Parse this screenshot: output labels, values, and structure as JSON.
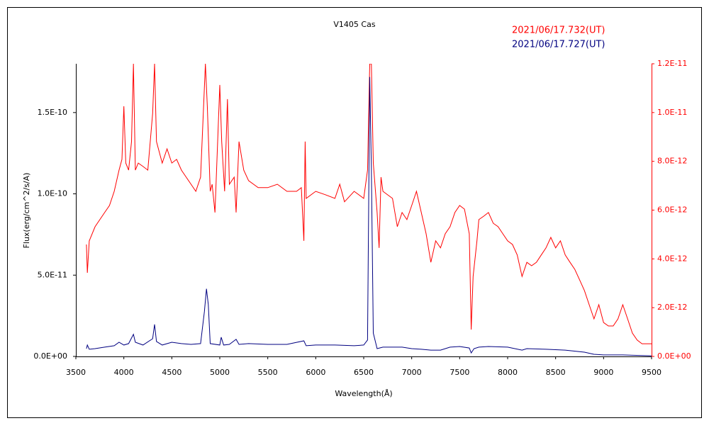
{
  "chart_data": {
    "type": "line",
    "title": "V1405 Cas",
    "xlabel": "Wavelength(Å)",
    "ylabel": "Flux(erg/cm^2/s/A)",
    "xlim": [
      3500,
      9500
    ],
    "xticks": [
      3500,
      4000,
      4500,
      5000,
      5500,
      6000,
      6500,
      7000,
      7500,
      8000,
      8500,
      9000,
      9500
    ],
    "ylim": [
      0,
      1.8e-10
    ],
    "yticks": [
      {
        "value": 0,
        "label": "0.0E+00"
      },
      {
        "value": 5e-11,
        "label": "5.0E-11"
      },
      {
        "value": 1e-10,
        "label": "1.0E-10"
      },
      {
        "value": 1.5e-10,
        "label": "1.5E-10"
      }
    ],
    "y2lim": [
      0,
      1.2e-11
    ],
    "y2ticks": [
      {
        "value": 0,
        "label": "0.0E+00"
      },
      {
        "value": 2e-12,
        "label": "2.0E-12"
      },
      {
        "value": 4e-12,
        "label": "4.0E-12"
      },
      {
        "value": 6e-12,
        "label": "6.0E-12"
      },
      {
        "value": 8e-12,
        "label": "8.0E-12"
      },
      {
        "value": 1e-11,
        "label": "1.0E-11"
      },
      {
        "value": 1.2e-11,
        "label": "1.2E-11"
      }
    ],
    "y2color": "#ff0000",
    "grid": false,
    "legend": "top-right",
    "series": [
      {
        "name": "2021/06/17.732(UT)",
        "color": "#ff0000",
        "axis": "y2",
        "x": [
          3610,
          3620,
          3640,
          3700,
          3800,
          3850,
          3900,
          3950,
          3980,
          4000,
          4020,
          4050,
          4080,
          4100,
          4120,
          4150,
          4200,
          4250,
          4300,
          4320,
          4340,
          4400,
          4450,
          4500,
          4550,
          4600,
          4650,
          4700,
          4750,
          4800,
          4850,
          4870,
          4900,
          4920,
          4950,
          5000,
          5020,
          5050,
          5080,
          5100,
          5150,
          5170,
          5200,
          5250,
          5300,
          5400,
          5500,
          5600,
          5700,
          5800,
          5850,
          5876,
          5890,
          5900,
          6000,
          6100,
          6200,
          6250,
          6300,
          6400,
          6500,
          6540,
          6563,
          6580,
          6600,
          6640,
          6660,
          6680,
          6700,
          6800,
          6850,
          6900,
          6950,
          7000,
          7050,
          7100,
          7150,
          7200,
          7250,
          7300,
          7350,
          7400,
          7450,
          7500,
          7550,
          7600,
          7620,
          7640,
          7680,
          7700,
          7750,
          7800,
          7850,
          7900,
          7950,
          8000,
          8050,
          8100,
          8150,
          8200,
          8250,
          8300,
          8350,
          8400,
          8450,
          8500,
          8550,
          8600,
          8650,
          8700,
          8750,
          8800,
          8850,
          8900,
          8950,
          9000,
          9050,
          9100,
          9150,
          9200,
          9250,
          9300,
          9350,
          9400,
          9450,
          9500
        ],
        "values": [
          4.59e-12,
          3.43e-12,
          4.74e-12,
          5.32e-12,
          5.9e-12,
          6.19e-12,
          6.77e-12,
          7.64e-12,
          8.08e-12,
          1.026e-11,
          7.93e-12,
          7.64e-12,
          8.81e-12,
          1.2e-11,
          7.64e-12,
          7.93e-12,
          7.79e-12,
          7.64e-12,
          9.97e-12,
          1.2e-11,
          8.81e-12,
          7.93e-12,
          8.51e-12,
          7.93e-12,
          8.08e-12,
          7.64e-12,
          7.35e-12,
          7.06e-12,
          6.77e-12,
          7.35e-12,
          1.2e-11,
          1.026e-11,
          6.77e-12,
          7.06e-12,
          5.9e-12,
          1.113e-11,
          8.81e-12,
          6.77e-12,
          1.055e-11,
          7.06e-12,
          7.35e-12,
          5.9e-12,
          8.81e-12,
          7.64e-12,
          7.21e-12,
          6.92e-12,
          6.92e-12,
          7.06e-12,
          6.77e-12,
          6.77e-12,
          6.92e-12,
          4.74e-12,
          8.81e-12,
          6.48e-12,
          6.77e-12,
          6.63e-12,
          6.48e-12,
          7.06e-12,
          6.34e-12,
          6.77e-12,
          6.48e-12,
          7.64e-12,
          1.2e-11,
          1.2e-11,
          7.93e-12,
          5.9e-12,
          4.45e-12,
          7.35e-12,
          6.77e-12,
          6.48e-12,
          5.32e-12,
          5.9e-12,
          5.61e-12,
          6.19e-12,
          6.77e-12,
          5.9e-12,
          5.03e-12,
          3.86e-12,
          4.74e-12,
          4.45e-12,
          5.03e-12,
          5.32e-12,
          5.9e-12,
          6.19e-12,
          6.04e-12,
          5.03e-12,
          1.1e-12,
          3.28e-12,
          4.74e-12,
          5.61e-12,
          5.75e-12,
          5.9e-12,
          5.46e-12,
          5.32e-12,
          5.03e-12,
          4.74e-12,
          4.59e-12,
          4.16e-12,
          3.28e-12,
          3.86e-12,
          3.72e-12,
          3.86e-12,
          4.16e-12,
          4.45e-12,
          4.88e-12,
          4.45e-12,
          4.74e-12,
          4.16e-12,
          3.86e-12,
          3.57e-12,
          3.14e-12,
          2.7e-12,
          2.12e-12,
          1.54e-12,
          2.12e-12,
          1.39e-12,
          1.25e-12,
          1.25e-12,
          1.54e-12,
          2.12e-12,
          1.54e-12,
          9.6e-13,
          6.7e-13,
          5.2e-13,
          5.2e-13,
          5.2e-13
        ]
      },
      {
        "name": "2021/06/17.727(UT)",
        "color": "#000080",
        "axis": "y",
        "x": [
          3610,
          3620,
          3640,
          3700,
          3800,
          3900,
          3950,
          4000,
          4050,
          4100,
          4120,
          4200,
          4300,
          4320,
          4340,
          4400,
          4500,
          4600,
          4700,
          4800,
          4840,
          4861,
          4880,
          4900,
          5000,
          5015,
          5040,
          5100,
          5170,
          5200,
          5300,
          5500,
          5700,
          5876,
          5900,
          6000,
          6200,
          6400,
          6500,
          6540,
          6563,
          6580,
          6600,
          6640,
          6700,
          6800,
          6900,
          7000,
          7100,
          7200,
          7300,
          7400,
          7500,
          7600,
          7620,
          7650,
          7700,
          7800,
          8000,
          8150,
          8200,
          8400,
          8600,
          8800,
          8900,
          9000,
          9200,
          9500
        ],
        "values": [
          4.8e-12,
          7e-12,
          4.4e-12,
          4.8e-12,
          5.7e-12,
          6.6e-12,
          8.7e-12,
          7e-12,
          7.9e-12,
          1.36e-11,
          8.7e-12,
          7e-12,
          1.09e-11,
          1.97e-11,
          9.2e-12,
          7e-12,
          8.7e-12,
          7.9e-12,
          7.4e-12,
          7.9e-12,
          2.76e-11,
          4.16e-11,
          3.19e-11,
          7.9e-12,
          7e-12,
          1.18e-11,
          7e-12,
          7.4e-12,
          1.05e-11,
          7.4e-12,
          7.9e-12,
          7.4e-12,
          7.4e-12,
          9.6e-12,
          6.6e-12,
          7e-12,
          7e-12,
          6.6e-12,
          7e-12,
          1.01e-11,
          1.719e-10,
          1.15e-10,
          1.44e-11,
          4.8e-12,
          5.7e-12,
          5.7e-12,
          5.7e-12,
          4.8e-12,
          4.4e-12,
          3.9e-12,
          3.9e-12,
          5.7e-12,
          6.1e-12,
          5.2e-12,
          2.2e-12,
          4.8e-12,
          5.7e-12,
          6.1e-12,
          5.7e-12,
          3.9e-12,
          4.8e-12,
          4.4e-12,
          3.9e-12,
          2.6e-12,
          1.3e-12,
          9e-13,
          9e-13,
          4e-13
        ]
      }
    ]
  }
}
